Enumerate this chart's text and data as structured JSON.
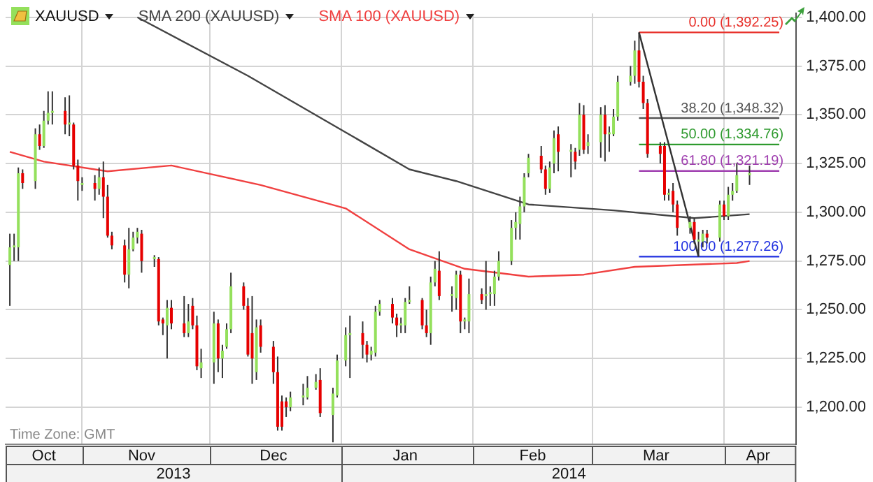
{
  "chart_data": {
    "type": "candlestick",
    "legend": "top left",
    "grid": true,
    "marker": "none",
    "ylim": [
      1181,
      1402
    ],
    "yticks": [
      {
        "value": 1200,
        "label": "1,200.00"
      },
      {
        "value": 1225,
        "label": "1,225.00"
      },
      {
        "value": 1250,
        "label": "1,250.00"
      },
      {
        "value": 1275,
        "label": "1,275.00"
      },
      {
        "value": 1300,
        "label": "1,300.00"
      },
      {
        "value": 1325,
        "label": "1,325.00"
      },
      {
        "value": 1350,
        "label": "1,350.00"
      },
      {
        "value": 1375,
        "label": "1,375.00"
      },
      {
        "value": 1400,
        "label": "1,400.00"
      }
    ],
    "xlim": [
      "2013-10-14",
      "2014-04-18"
    ],
    "xticks": [
      {
        "value": "2013-10-23",
        "label": "Oct"
      },
      {
        "value": "2013-11-01",
        "label": null
      },
      {
        "value": "2013-11-15",
        "label": "Nov"
      },
      {
        "value": "2013-12-01",
        "label": null
      },
      {
        "value": "2013-12-16",
        "label": "Dec"
      },
      {
        "value": "2014-01-01",
        "label": null
      },
      {
        "value": "2014-01-16",
        "label": "Jan"
      },
      {
        "value": "2014-02-01",
        "label": null
      },
      {
        "value": "2014-02-15",
        "label": "Feb"
      },
      {
        "value": "2014-03-01",
        "label": null
      },
      {
        "value": "2014-03-16",
        "label": "Mar"
      },
      {
        "value": "2014-04-01",
        "label": null
      },
      {
        "value": "2014-04-09",
        "label": "Apr"
      }
    ],
    "series": [
      {
        "name": "XAUUSD",
        "x": [
          "2013-10-15",
          "2013-10-16",
          "2013-10-17",
          "2013-10-18",
          "2013-10-21",
          "2013-10-22",
          "2013-10-23",
          "2013-10-24",
          "2013-10-25",
          "2013-10-28",
          "2013-10-29",
          "2013-10-30",
          "2013-10-31",
          "2013-11-01",
          "2013-11-04",
          "2013-11-05",
          "2013-11-06",
          "2013-11-07",
          "2013-11-08",
          "2013-11-11",
          "2013-11-12",
          "2013-11-13",
          "2013-11-14",
          "2013-11-15",
          "2013-11-18",
          "2013-11-19",
          "2013-11-20",
          "2013-11-21",
          "2013-11-22",
          "2013-11-25",
          "2013-11-26",
          "2013-11-27",
          "2013-11-28",
          "2013-11-29",
          "2013-12-02",
          "2013-12-03",
          "2013-12-04",
          "2013-12-05",
          "2013-12-06",
          "2013-12-09",
          "2013-12-10",
          "2013-12-11",
          "2013-12-12",
          "2013-12-13",
          "2013-12-16",
          "2013-12-17",
          "2013-12-18",
          "2013-12-19",
          "2013-12-20",
          "2013-12-23",
          "2013-12-24",
          "2013-12-26",
          "2013-12-27",
          "2013-12-30",
          "2013-12-31",
          "2014-01-02",
          "2014-01-03",
          "2014-01-06",
          "2014-01-07",
          "2014-01-08",
          "2014-01-09",
          "2014-01-10",
          "2014-01-13",
          "2014-01-14",
          "2014-01-15",
          "2014-01-16",
          "2014-01-17",
          "2014-01-20",
          "2014-01-21",
          "2014-01-22",
          "2014-01-23",
          "2014-01-24",
          "2014-01-27",
          "2014-01-28",
          "2014-01-29",
          "2014-01-30",
          "2014-01-31",
          "2014-02-03",
          "2014-02-04",
          "2014-02-05",
          "2014-02-06",
          "2014-02-07",
          "2014-02-10",
          "2014-02-11",
          "2014-02-12",
          "2014-02-13",
          "2014-02-14",
          "2014-02-17",
          "2014-02-18",
          "2014-02-19",
          "2014-02-20",
          "2014-02-21",
          "2014-02-24",
          "2014-02-25",
          "2014-02-26",
          "2014-02-27",
          "2014-02-28",
          "2014-03-03",
          "2014-03-04",
          "2014-03-05",
          "2014-03-06",
          "2014-03-07",
          "2014-03-10",
          "2014-03-11",
          "2014-03-12",
          "2014-03-13",
          "2014-03-14",
          "2014-03-17",
          "2014-03-18",
          "2014-03-19",
          "2014-03-20",
          "2014-03-21",
          "2014-03-24",
          "2014-03-25",
          "2014-03-26",
          "2014-03-27",
          "2014-03-28",
          "2014-03-31",
          "2014-04-01",
          "2014-04-02",
          "2014-04-03",
          "2014-04-04",
          "2014-04-07"
        ],
        "ohlc": [
          [
            1273,
            1289,
            1252,
            1282
          ],
          [
            1282,
            1289,
            1275,
            1283
          ],
          [
            1282,
            1323,
            1275,
            1320
          ],
          [
            1320,
            1322,
            1312,
            1315
          ],
          [
            1316,
            1343,
            1312,
            1340
          ],
          [
            1340,
            1345,
            1332,
            1334
          ],
          [
            1334,
            1352,
            1333,
            1347
          ],
          [
            1347,
            1362,
            1345,
            1351
          ],
          [
            1351,
            1362,
            1345,
            1352
          ],
          [
            1352,
            1359,
            1340,
            1345
          ],
          [
            1345,
            1360,
            1339,
            1346
          ],
          [
            1345,
            1346,
            1322,
            1324
          ],
          [
            1324,
            1327,
            1306,
            1316
          ],
          [
            1314,
            1318,
            1311,
            1315
          ],
          [
            1315,
            1319,
            1306,
            1312
          ],
          [
            1312,
            1323,
            1309,
            1318
          ],
          [
            1318,
            1326,
            1297,
            1308
          ],
          [
            1308,
            1314,
            1287,
            1288
          ],
          [
            1288,
            1290,
            1281,
            1283
          ],
          [
            1283,
            1286,
            1264,
            1268
          ],
          [
            1268,
            1292,
            1261,
            1281
          ],
          [
            1281,
            1290,
            1280,
            1287
          ],
          [
            1287,
            1292,
            1284,
            1290
          ],
          [
            1289,
            1291,
            1269,
            1275
          ],
          [
            1276,
            1278,
            1272,
            1277
          ],
          [
            1276,
            1277,
            1242,
            1244
          ],
          [
            1245,
            1246,
            1237,
            1243
          ],
          [
            1242,
            1255,
            1225,
            1251
          ],
          [
            1251,
            1255,
            1240,
            1243
          ],
          [
            1243,
            1257,
            1236,
            1238
          ],
          [
            1238,
            1253,
            1236,
            1244
          ],
          [
            1252,
            1256,
            1240,
            1242
          ],
          [
            1242,
            1247,
            1219,
            1221
          ],
          [
            1220,
            1230,
            1215,
            1223
          ],
          [
            1223,
            1249,
            1212,
            1243
          ],
          [
            1243,
            1245,
            1218,
            1225
          ],
          [
            1225,
            1232,
            1215,
            1229
          ],
          [
            1231,
            1243,
            1230,
            1240
          ],
          [
            1240,
            1269,
            1238,
            1262
          ],
          [
            1262,
            1264,
            1250,
            1252
          ],
          [
            1252,
            1256,
            1226,
            1227
          ],
          [
            1238,
            1257,
            1212,
            1225
          ],
          [
            1218,
            1245,
            1214,
            1241
          ],
          [
            1242,
            1245,
            1228,
            1231
          ],
          [
            1231,
            1234,
            1212,
            1218
          ],
          [
            1218,
            1226,
            1188,
            1190
          ],
          [
            1203,
            1206,
            1188,
            1190
          ],
          [
            1203,
            1205,
            1195,
            1200
          ],
          [
            1200,
            1208,
            1198,
            1205
          ],
          [
            1205,
            1212,
            1201,
            1206
          ],
          [
            1205,
            1216,
            1204,
            1210
          ],
          [
            1210,
            1217,
            1209,
            1213
          ],
          [
            1214,
            1220,
            1195,
            1197
          ],
          [
            1196,
            1210,
            1182,
            1207
          ],
          [
            1206,
            1227,
            1205,
            1224
          ],
          [
            1224,
            1241,
            1221,
            1237
          ],
          [
            1237,
            1247,
            1215,
            1238
          ],
          [
            1238,
            1244,
            1225,
            1232
          ],
          [
            1232,
            1234,
            1223,
            1227
          ],
          [
            1227,
            1231,
            1224,
            1229
          ],
          [
            1228,
            1252,
            1226,
            1249
          ],
          [
            1249,
            1255,
            1247,
            1253
          ],
          [
            1253,
            1256,
            1243,
            1246
          ],
          [
            1246,
            1248,
            1236,
            1242
          ],
          [
            1242,
            1246,
            1238,
            1243
          ],
          [
            1242,
            1256,
            1238,
            1254
          ],
          [
            1254,
            1262,
            1253,
            1255
          ],
          [
            1255,
            1256,
            1240,
            1242
          ],
          [
            1242,
            1250,
            1236,
            1238
          ],
          [
            1238,
            1267,
            1232,
            1264
          ],
          [
            1264,
            1275,
            1262,
            1271
          ],
          [
            1270,
            1280,
            1255,
            1257
          ],
          [
            1257,
            1262,
            1249,
            1258
          ],
          [
            1256,
            1270,
            1250,
            1268
          ],
          [
            1268,
            1270,
            1238,
            1244
          ],
          [
            1244,
            1246,
            1240,
            1245
          ],
          [
            1244,
            1266,
            1238,
            1258
          ],
          [
            1258,
            1261,
            1253,
            1255
          ],
          [
            1257,
            1275,
            1250,
            1258
          ],
          [
            1258,
            1262,
            1252,
            1259
          ],
          [
            1258,
            1270,
            1252,
            1267
          ],
          [
            1267,
            1280,
            1265,
            1275
          ],
          [
            1275,
            1296,
            1273,
            1292
          ],
          [
            1292,
            1300,
            1286,
            1295
          ],
          [
            1294,
            1308,
            1286,
            1303
          ],
          [
            1303,
            1320,
            1300,
            1318
          ],
          [
            1320,
            1330,
            1318,
            1328
          ],
          [
            1329,
            1334,
            1320,
            1322
          ],
          [
            1322,
            1324,
            1309,
            1312
          ],
          [
            1312,
            1326,
            1310,
            1323
          ],
          [
            1325,
            1342,
            1320,
            1338
          ],
          [
            1340,
            1344,
            1321,
            1331
          ],
          [
            1331,
            1335,
            1318,
            1332
          ],
          [
            1331,
            1333,
            1322,
            1326
          ],
          [
            1332,
            1356,
            1329,
            1350
          ],
          [
            1350,
            1355,
            1330,
            1332
          ],
          [
            1334,
            1340,
            1330,
            1336
          ],
          [
            1336,
            1354,
            1328,
            1350
          ],
          [
            1350,
            1355,
            1326,
            1340
          ],
          [
            1340,
            1344,
            1331,
            1341
          ],
          [
            1340,
            1353,
            1339,
            1349
          ],
          [
            1349,
            1370,
            1347,
            1367
          ],
          [
            1367,
            1375,
            1365,
            1370
          ],
          [
            1370,
            1388,
            1366,
            1383
          ],
          [
            1383,
            1392.25,
            1364,
            1367
          ],
          [
            1367,
            1370,
            1353,
            1356
          ],
          [
            1356,
            1358,
            1328,
            1330
          ],
          [
            1334,
            1336,
            1325,
            1330
          ],
          [
            1334,
            1336,
            1306,
            1309
          ],
          [
            1309,
            1312,
            1306,
            1310
          ],
          [
            1311,
            1315,
            1300,
            1304
          ],
          [
            1304,
            1306,
            1288,
            1292
          ],
          [
            1292,
            1298,
            1289,
            1295
          ],
          [
            1295,
            1297,
            1284,
            1286
          ],
          [
            1285,
            1290,
            1277.26,
            1286
          ],
          [
            1285,
            1291,
            1282,
            1289
          ],
          [
            1289,
            1291,
            1284,
            1287
          ],
          [
            1287,
            1306,
            1285,
            1304
          ],
          [
            1304,
            1306,
            1296,
            1298
          ],
          [
            1298,
            1313,
            1296,
            1309
          ],
          [
            1309,
            1315,
            1306,
            1311
          ],
          [
            1311,
            1325,
            1310,
            1319
          ],
          [
            1319,
            1324,
            1314,
            1320
          ]
        ],
        "colors": [
          "#94e05c",
          "#94e05c",
          "#94e05c",
          "#e60000",
          "#94e05c",
          "#e60000",
          "#94e05c",
          "#94e05c",
          "#94e05c",
          "#e60000",
          "#94e05c",
          "#e60000",
          "#e60000",
          "#94e05c",
          "#e60000",
          "#94e05c",
          "#e60000",
          "#e60000",
          "#e60000",
          "#e60000",
          "#94e05c",
          "#94e05c",
          "#94e05c",
          "#e60000",
          "#94e05c",
          "#e60000",
          "#e60000",
          "#94e05c",
          "#e60000",
          "#e60000",
          "#94e05c",
          "#e60000",
          "#e60000",
          "#94e05c",
          "#94e05c",
          "#e60000",
          "#94e05c",
          "#94e05c",
          "#94e05c",
          "#e60000",
          "#e60000",
          "#e60000",
          "#94e05c",
          "#e60000",
          "#e60000",
          "#e60000",
          "#e60000",
          "#e60000",
          "#94e05c",
          "#94e05c",
          "#94e05c",
          "#94e05c",
          "#e60000",
          "#94e05c",
          "#94e05c",
          "#94e05c",
          "#94e05c",
          "#e60000",
          "#e60000",
          "#94e05c",
          "#94e05c",
          "#94e05c",
          "#e60000",
          "#e60000",
          "#94e05c",
          "#94e05c",
          "#94e05c",
          "#e60000",
          "#e60000",
          "#94e05c",
          "#94e05c",
          "#e60000",
          "#94e05c",
          "#94e05c",
          "#e60000",
          "#94e05c",
          "#94e05c",
          "#e60000",
          "#94e05c",
          "#94e05c",
          "#94e05c",
          "#94e05c",
          "#94e05c",
          "#94e05c",
          "#94e05c",
          "#94e05c",
          "#94e05c",
          "#e60000",
          "#e60000",
          "#94e05c",
          "#94e05c",
          "#e60000",
          "#94e05c",
          "#e60000",
          "#94e05c",
          "#e60000",
          "#94e05c",
          "#94e05c",
          "#e60000",
          "#94e05c",
          "#94e05c",
          "#94e05c",
          "#94e05c",
          "#94e05c",
          "#e60000",
          "#e60000",
          "#e60000",
          "#e60000",
          "#e60000",
          "#94e05c",
          "#e60000",
          "#e60000",
          "#94e05c",
          "#e60000",
          "#94e05c",
          "#94e05c",
          "#e60000",
          "#94e05c",
          "#e60000",
          "#94e05c",
          "#94e05c",
          "#94e05c",
          "#94e05c"
        ]
      },
      {
        "type": "line",
        "name": "SMA 200 (XAUUSD)",
        "color": "#444444",
        "x": [
          "2013-11-14",
          "2013-12-10",
          "2014-01-02",
          "2014-01-17",
          "2014-01-28",
          "2014-02-14",
          "2014-03-06",
          "2014-03-25",
          "2014-04-07"
        ],
        "values": [
          1400,
          1370,
          1341,
          1322,
          1316,
          1304,
          1301,
          1297,
          1299
        ]
      },
      {
        "type": "line",
        "name": "SMA 100 (XAUUSD)",
        "color": "#f04040",
        "x": [
          "2013-10-15",
          "2013-10-23",
          "2013-11-07",
          "2013-11-22",
          "2013-12-13",
          "2014-01-02",
          "2014-01-17",
          "2014-01-30",
          "2014-02-14",
          "2014-02-27",
          "2014-03-11",
          "2014-04-04",
          "2014-04-07"
        ],
        "values": [
          1331,
          1326,
          1321,
          1324,
          1314,
          1302,
          1281,
          1271,
          1267,
          1268,
          1272,
          1274,
          1275
        ]
      },
      {
        "type": "line",
        "color": "#333333",
        "x": [
          "2014-03-12",
          "2014-03-26"
        ],
        "values": [
          1392.25,
          1277.26
        ]
      },
      {
        "type": "line",
        "color": "#e8302a",
        "x": [
          "2014-03-12",
          "2014-04-14"
        ],
        "values": [
          1392.25,
          1392.25
        ]
      },
      {
        "type": "line",
        "color": "#555555",
        "x": [
          "2014-03-12",
          "2014-04-14"
        ],
        "values": [
          1348.32,
          1348.32
        ]
      },
      {
        "type": "line",
        "color": "#2e9a2e",
        "x": [
          "2014-03-12",
          "2014-04-14"
        ],
        "values": [
          1334.76,
          1334.76
        ]
      },
      {
        "type": "line",
        "color": "#a040b0",
        "x": [
          "2014-03-12",
          "2014-04-14"
        ],
        "values": [
          1321.19,
          1321.19
        ]
      },
      {
        "type": "line",
        "color": "#2030e0",
        "x": [
          "2014-03-12",
          "2014-04-14"
        ],
        "values": [
          1277.26,
          1277.26
        ]
      }
    ],
    "annotations": [
      {
        "text": "0.00 (1,392.25)",
        "x": "2014-04-14",
        "y": 1392.25
      },
      {
        "text": "38.20 (1,348.32)",
        "x": "2014-04-14",
        "y": 1348.32
      },
      {
        "text": "50.00 (1,334.76)",
        "x": "2014-04-14",
        "y": 1334.76
      },
      {
        "text": "61.80 (1,321.19)",
        "x": "2014-04-14",
        "y": 1321.19
      },
      {
        "text": "100.00 (1,277.26)",
        "x": "2014-04-14",
        "y": 1277.26
      },
      "Time Zone: GMT",
      "2013",
      "2014"
    ]
  }
}
